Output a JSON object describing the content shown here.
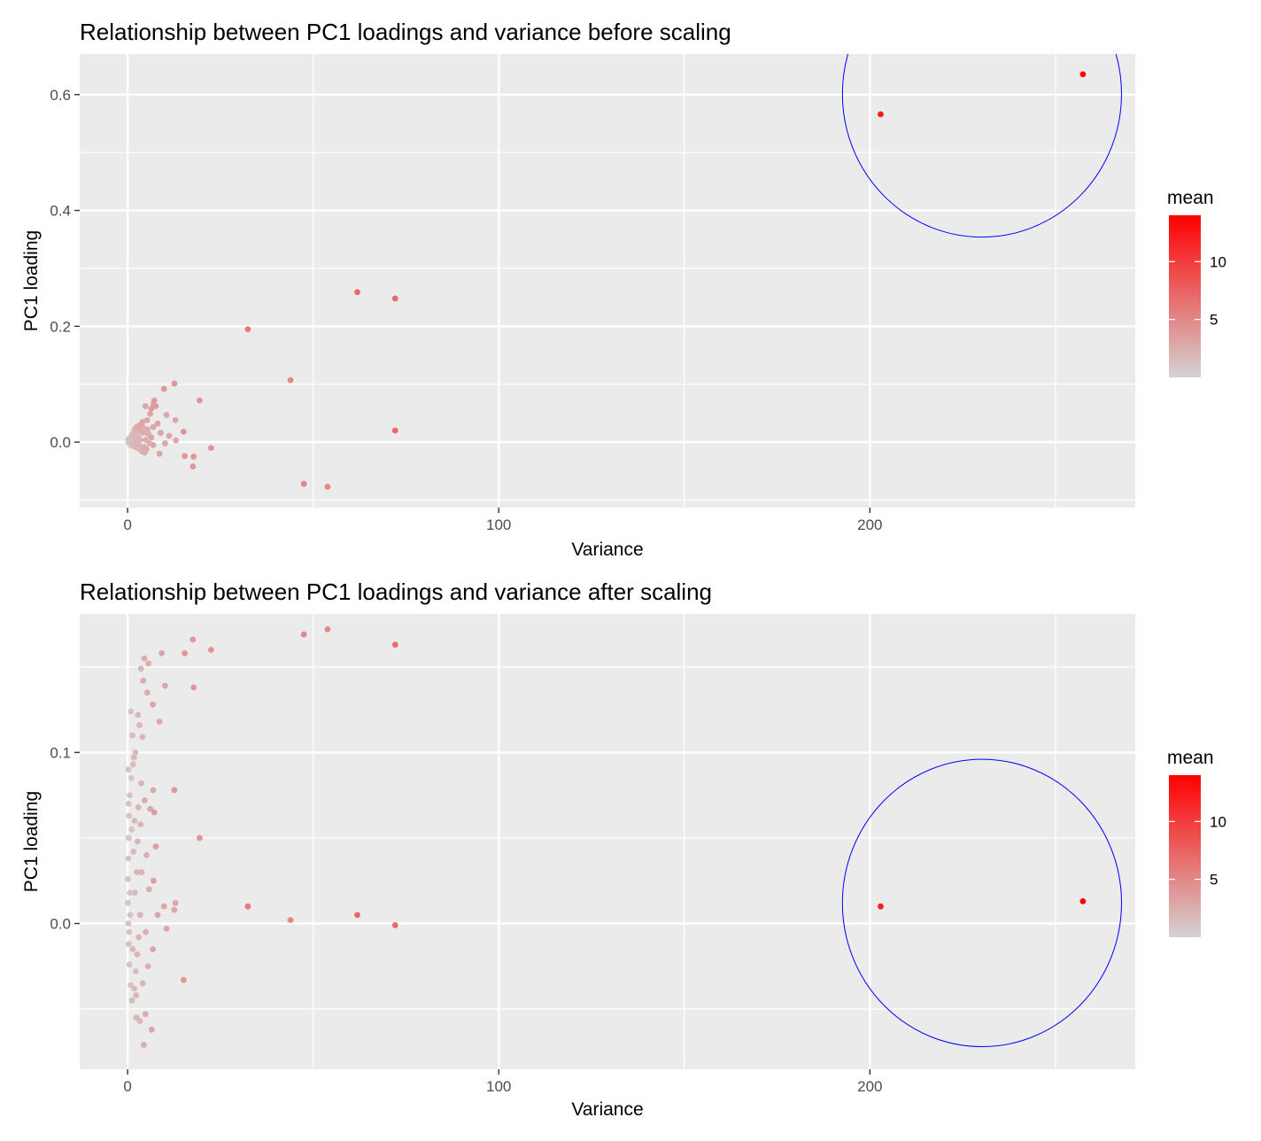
{
  "chart_data": [
    {
      "type": "scatter",
      "title": "Relationship between PC1 loadings and variance before scaling",
      "xlabel": "Variance",
      "ylabel": "PC1 loading",
      "xlim": [
        -12.9,
        271.5
      ],
      "ylim": [
        -0.113,
        0.67
      ],
      "x_ticks": [
        0,
        100,
        200
      ],
      "x_tick_labels": [
        "0",
        "100",
        "200"
      ],
      "y_ticks": [
        0.0,
        0.2,
        0.4,
        0.6
      ],
      "y_tick_labels": [
        "0.0",
        "0.2",
        "0.4",
        "0.6"
      ],
      "grid": true,
      "legend": {
        "title": "mean",
        "position": "right",
        "min": 0,
        "max": 14,
        "ticks": [
          5,
          10
        ],
        "tick_labels": [
          "5",
          "10"
        ],
        "low_color": "#d3d3d3",
        "high_color": "#ff0000"
      },
      "highlight_circle": {
        "cx": 230.2,
        "cy": 0.601,
        "rx": 37.6,
        "ry": 0.247,
        "color": "#0000ff"
      },
      "points": [
        {
          "x": 257.4,
          "y": 0.635,
          "mean": 14
        },
        {
          "x": 202.9,
          "y": 0.566,
          "mean": 12
        },
        {
          "x": 61.9,
          "y": 0.259,
          "mean": 7
        },
        {
          "x": 72.1,
          "y": 0.248,
          "mean": 7
        },
        {
          "x": 72.1,
          "y": 0.02,
          "mean": 7
        },
        {
          "x": 32.4,
          "y": 0.195,
          "mean": 6
        },
        {
          "x": 43.9,
          "y": 0.107,
          "mean": 5
        },
        {
          "x": 47.5,
          "y": -0.072,
          "mean": 5
        },
        {
          "x": 53.9,
          "y": -0.077,
          "mean": 5
        },
        {
          "x": 12.6,
          "y": 0.101,
          "mean": 4
        },
        {
          "x": 9.8,
          "y": 0.092,
          "mean": 4
        },
        {
          "x": 19.4,
          "y": 0.072,
          "mean": 4
        },
        {
          "x": 15.1,
          "y": 0.018,
          "mean": 4
        },
        {
          "x": 22.5,
          "y": -0.01,
          "mean": 4
        },
        {
          "x": 15.4,
          "y": -0.024,
          "mean": 4
        },
        {
          "x": 17.8,
          "y": -0.025,
          "mean": 4
        },
        {
          "x": 17.6,
          "y": -0.042,
          "mean": 4
        },
        {
          "x": 7.2,
          "y": 0.072,
          "mean": 3.5
        },
        {
          "x": 7.0,
          "y": 0.066,
          "mean": 3.5
        },
        {
          "x": 7.6,
          "y": 0.062,
          "mean": 3.5
        },
        {
          "x": 6.4,
          "y": 0.058,
          "mean": 3.5
        },
        {
          "x": 4.8,
          "y": 0.062,
          "mean": 3
        },
        {
          "x": 6.1,
          "y": 0.049,
          "mean": 3
        },
        {
          "x": 10.5,
          "y": 0.047,
          "mean": 3
        },
        {
          "x": 12.9,
          "y": 0.038,
          "mean": 3
        },
        {
          "x": 8.1,
          "y": 0.032,
          "mean": 3
        },
        {
          "x": 5.3,
          "y": 0.038,
          "mean": 3
        },
        {
          "x": 4.0,
          "y": 0.035,
          "mean": 3
        },
        {
          "x": 3.2,
          "y": 0.029,
          "mean": 3
        },
        {
          "x": 2.4,
          "y": 0.026,
          "mean": 2.5
        },
        {
          "x": 6.9,
          "y": 0.026,
          "mean": 3
        },
        {
          "x": 8.9,
          "y": 0.016,
          "mean": 3
        },
        {
          "x": 11.2,
          "y": 0.011,
          "mean": 3
        },
        {
          "x": 13.0,
          "y": 0.003,
          "mean": 3
        },
        {
          "x": 10.1,
          "y": -0.002,
          "mean": 3
        },
        {
          "x": 6.9,
          "y": -0.005,
          "mean": 3
        },
        {
          "x": 8.6,
          "y": -0.02,
          "mean": 3
        },
        {
          "x": 5.1,
          "y": -0.012,
          "mean": 2.5
        },
        {
          "x": 4.3,
          "y": 0.016,
          "mean": 2.5
        },
        {
          "x": 3.6,
          "y": 0.02,
          "mean": 2.5
        },
        {
          "x": 2.9,
          "y": 0.012,
          "mean": 2
        },
        {
          "x": 2.2,
          "y": 0.018,
          "mean": 2
        },
        {
          "x": 1.8,
          "y": 0.01,
          "mean": 2
        },
        {
          "x": 1.4,
          "y": 0.006,
          "mean": 1.5
        },
        {
          "x": 1.0,
          "y": 0.002,
          "mean": 1.5
        },
        {
          "x": 0.6,
          "y": 0.001,
          "mean": 1
        },
        {
          "x": 0.3,
          "y": -0.001,
          "mean": 1
        },
        {
          "x": 0.8,
          "y": 0.008,
          "mean": 1
        },
        {
          "x": 1.2,
          "y": -0.004,
          "mean": 1
        },
        {
          "x": 1.6,
          "y": -0.006,
          "mean": 1.5
        },
        {
          "x": 2.0,
          "y": -0.008,
          "mean": 1.5
        },
        {
          "x": 2.6,
          "y": -0.01,
          "mean": 2
        },
        {
          "x": 3.0,
          "y": -0.004,
          "mean": 2
        },
        {
          "x": 3.4,
          "y": 0.004,
          "mean": 2
        },
        {
          "x": 3.8,
          "y": -0.016,
          "mean": 2
        },
        {
          "x": 4.4,
          "y": -0.008,
          "mean": 2.5
        },
        {
          "x": 4.9,
          "y": 0.004,
          "mean": 2.5
        },
        {
          "x": 5.6,
          "y": 0.014,
          "mean": 2.5
        },
        {
          "x": 5.9,
          "y": -0.002,
          "mean": 2.5
        },
        {
          "x": 6.4,
          "y": 0.008,
          "mean": 3
        },
        {
          "x": 0.2,
          "y": 0.004,
          "mean": 1
        },
        {
          "x": 0.5,
          "y": -0.003,
          "mean": 1
        },
        {
          "x": 1.1,
          "y": 0.012,
          "mean": 1.5
        },
        {
          "x": 1.9,
          "y": 0.022,
          "mean": 2
        },
        {
          "x": 2.7,
          "y": 0.003,
          "mean": 2
        },
        {
          "x": 3.3,
          "y": -0.012,
          "mean": 2
        },
        {
          "x": 4.1,
          "y": 0.026,
          "mean": 2.5
        },
        {
          "x": 4.6,
          "y": -0.018,
          "mean": 2.5
        },
        {
          "x": 5.4,
          "y": 0.022,
          "mean": 2.5
        },
        {
          "x": 0.9,
          "y": -0.006,
          "mean": 1
        },
        {
          "x": 1.5,
          "y": 0.015,
          "mean": 1.5
        },
        {
          "x": 2.3,
          "y": -0.002,
          "mean": 2
        },
        {
          "x": 0.4,
          "y": 0.006,
          "mean": 1
        },
        {
          "x": 1.3,
          "y": 0.0,
          "mean": 1.5
        },
        {
          "x": 2.1,
          "y": 0.007,
          "mean": 1.5
        }
      ]
    },
    {
      "type": "scatter",
      "title": "Relationship between PC1 loadings and variance after scaling",
      "xlabel": "Variance",
      "ylabel": "PC1 loading",
      "xlim": [
        -12.9,
        271.5
      ],
      "ylim": [
        -0.0852,
        0.181
      ],
      "x_ticks": [
        0,
        100,
        200
      ],
      "x_tick_labels": [
        "0",
        "100",
        "200"
      ],
      "y_ticks": [
        0.0,
        0.1
      ],
      "y_tick_labels": [
        "0.0",
        "0.1"
      ],
      "grid": true,
      "legend": {
        "title": "mean",
        "position": "right",
        "min": 0,
        "max": 14,
        "ticks": [
          5,
          10
        ],
        "tick_labels": [
          "5",
          "10"
        ],
        "low_color": "#d3d3d3",
        "high_color": "#ff0000"
      },
      "highlight_circle": {
        "cx": 230.2,
        "cy": 0.012,
        "rx": 37.6,
        "ry": 0.084,
        "color": "#0000ff"
      },
      "points": [
        {
          "x": 257.4,
          "y": 0.013,
          "mean": 14
        },
        {
          "x": 202.9,
          "y": 0.01,
          "mean": 12
        },
        {
          "x": 61.9,
          "y": 0.005,
          "mean": 7
        },
        {
          "x": 72.1,
          "y": 0.163,
          "mean": 7
        },
        {
          "x": 72.1,
          "y": -0.001,
          "mean": 7
        },
        {
          "x": 32.4,
          "y": 0.01,
          "mean": 6
        },
        {
          "x": 43.9,
          "y": 0.002,
          "mean": 5
        },
        {
          "x": 47.5,
          "y": 0.169,
          "mean": 5
        },
        {
          "x": 53.9,
          "y": 0.172,
          "mean": 5
        },
        {
          "x": 22.5,
          "y": 0.16,
          "mean": 4
        },
        {
          "x": 17.6,
          "y": 0.166,
          "mean": 4
        },
        {
          "x": 15.4,
          "y": 0.158,
          "mean": 4
        },
        {
          "x": 17.8,
          "y": 0.138,
          "mean": 4
        },
        {
          "x": 19.4,
          "y": 0.05,
          "mean": 4
        },
        {
          "x": 15.1,
          "y": -0.033,
          "mean": 4
        },
        {
          "x": 12.6,
          "y": 0.078,
          "mean": 4
        },
        {
          "x": 12.9,
          "y": 0.012,
          "mean": 3
        },
        {
          "x": 12.6,
          "y": 0.008,
          "mean": 3
        },
        {
          "x": 9.2,
          "y": 0.158,
          "mean": 3
        },
        {
          "x": 10.1,
          "y": 0.139,
          "mean": 3
        },
        {
          "x": 8.6,
          "y": 0.118,
          "mean": 3
        },
        {
          "x": 7.2,
          "y": 0.065,
          "mean": 3.5
        },
        {
          "x": 7.6,
          "y": 0.045,
          "mean": 3.5
        },
        {
          "x": 6.9,
          "y": 0.078,
          "mean": 3
        },
        {
          "x": 6.1,
          "y": 0.067,
          "mean": 3
        },
        {
          "x": 7.0,
          "y": 0.025,
          "mean": 3.5
        },
        {
          "x": 8.1,
          "y": 0.005,
          "mean": 3
        },
        {
          "x": 10.5,
          "y": -0.003,
          "mean": 3
        },
        {
          "x": 9.8,
          "y": 0.01,
          "mean": 3
        },
        {
          "x": 6.8,
          "y": -0.015,
          "mean": 3
        },
        {
          "x": 6.5,
          "y": -0.062,
          "mean": 3
        },
        {
          "x": 4.4,
          "y": -0.071,
          "mean": 2.5
        },
        {
          "x": 4.8,
          "y": -0.053,
          "mean": 2.5
        },
        {
          "x": 3.3,
          "y": -0.057,
          "mean": 2
        },
        {
          "x": 2.4,
          "y": -0.055,
          "mean": 2
        },
        {
          "x": 4.5,
          "y": 0.155,
          "mean": 2.5
        },
        {
          "x": 5.6,
          "y": 0.152,
          "mean": 2.5
        },
        {
          "x": 3.6,
          "y": 0.149,
          "mean": 2
        },
        {
          "x": 4.2,
          "y": 0.142,
          "mean": 2.5
        },
        {
          "x": 5.3,
          "y": 0.135,
          "mean": 2.5
        },
        {
          "x": 6.8,
          "y": 0.128,
          "mean": 3
        },
        {
          "x": 2.8,
          "y": 0.122,
          "mean": 2
        },
        {
          "x": 3.2,
          "y": 0.116,
          "mean": 2
        },
        {
          "x": 4.0,
          "y": 0.109,
          "mean": 2
        },
        {
          "x": 2.1,
          "y": 0.1,
          "mean": 1.5
        },
        {
          "x": 1.5,
          "y": 0.093,
          "mean": 1.5
        },
        {
          "x": 1.0,
          "y": 0.085,
          "mean": 1
        },
        {
          "x": 0.6,
          "y": 0.075,
          "mean": 1
        },
        {
          "x": 0.4,
          "y": 0.063,
          "mean": 1
        },
        {
          "x": 0.3,
          "y": 0.05,
          "mean": 1
        },
        {
          "x": 0.2,
          "y": 0.038,
          "mean": 1
        },
        {
          "x": 0.1,
          "y": 0.026,
          "mean": 1
        },
        {
          "x": 0.1,
          "y": 0.012,
          "mean": 1
        },
        {
          "x": 0.2,
          "y": 0.0,
          "mean": 1
        },
        {
          "x": 0.3,
          "y": -0.012,
          "mean": 1
        },
        {
          "x": 0.5,
          "y": -0.024,
          "mean": 1
        },
        {
          "x": 0.8,
          "y": -0.036,
          "mean": 1
        },
        {
          "x": 1.2,
          "y": -0.045,
          "mean": 1.5
        },
        {
          "x": 1.8,
          "y": -0.038,
          "mean": 1.5
        },
        {
          "x": 2.2,
          "y": -0.028,
          "mean": 1.5
        },
        {
          "x": 2.6,
          "y": -0.018,
          "mean": 2
        },
        {
          "x": 3.0,
          "y": -0.008,
          "mean": 2
        },
        {
          "x": 3.4,
          "y": 0.005,
          "mean": 2
        },
        {
          "x": 2.0,
          "y": 0.018,
          "mean": 1.5
        },
        {
          "x": 2.5,
          "y": 0.03,
          "mean": 2
        },
        {
          "x": 1.6,
          "y": 0.042,
          "mean": 1.5
        },
        {
          "x": 1.1,
          "y": 0.055,
          "mean": 1
        },
        {
          "x": 2.9,
          "y": 0.068,
          "mean": 2
        },
        {
          "x": 3.7,
          "y": 0.082,
          "mean": 2
        },
        {
          "x": 1.3,
          "y": 0.11,
          "mean": 1.5
        },
        {
          "x": 0.9,
          "y": 0.124,
          "mean": 1
        },
        {
          "x": 1.7,
          "y": 0.097,
          "mean": 1.5
        },
        {
          "x": 5.1,
          "y": 0.04,
          "mean": 2.5
        },
        {
          "x": 5.8,
          "y": 0.02,
          "mean": 2.5
        },
        {
          "x": 4.9,
          "y": -0.005,
          "mean": 2.5
        },
        {
          "x": 5.5,
          "y": -0.025,
          "mean": 2.5
        },
        {
          "x": 4.1,
          "y": -0.035,
          "mean": 2
        },
        {
          "x": 3.8,
          "y": 0.03,
          "mean": 2
        },
        {
          "x": 0.7,
          "y": 0.005,
          "mean": 1
        },
        {
          "x": 1.4,
          "y": -0.015,
          "mean": 1.5
        },
        {
          "x": 0.4,
          "y": -0.005,
          "mean": 1
        },
        {
          "x": 0.6,
          "y": 0.018,
          "mean": 1
        },
        {
          "x": 2.3,
          "y": -0.042,
          "mean": 2
        },
        {
          "x": 0.2,
          "y": 0.09,
          "mean": 1
        },
        {
          "x": 0.3,
          "y": 0.07,
          "mean": 1
        },
        {
          "x": 1.9,
          "y": 0.06,
          "mean": 1.5
        },
        {
          "x": 2.7,
          "y": 0.048,
          "mean": 2
        },
        {
          "x": 3.5,
          "y": 0.058,
          "mean": 2
        },
        {
          "x": 4.6,
          "y": 0.072,
          "mean": 2.5
        }
      ]
    }
  ]
}
